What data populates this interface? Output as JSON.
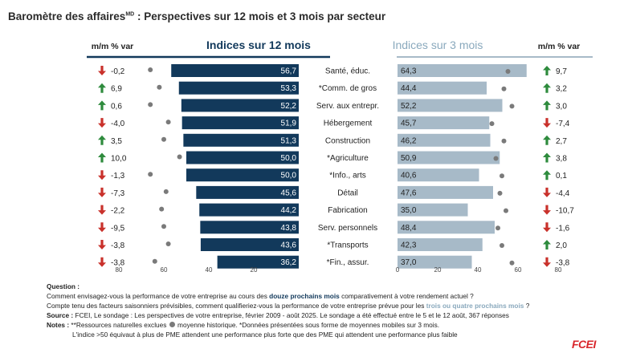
{
  "title": {
    "main": "Baromètre des affaires",
    "superscript": "MD",
    "rest": " : Perspectives sur 12 mois et 3 mois par secteur"
  },
  "headers": {
    "mm_left": "m/m % var",
    "indices_12": "Indices sur 12 mois",
    "indices_3": "Indices sur 3 mois",
    "mm_right": "m/m % var"
  },
  "colors": {
    "bar12": "#12395b",
    "bar3": "#a7bac8",
    "up": "#2e8b3d",
    "down": "#c9312b",
    "dot": "#7a7a7a",
    "header12": "#12395b",
    "header3": "#8aa9bd"
  },
  "chart_data": {
    "type": "bar",
    "title": "Baromètre des affaires : Perspectives sur 12 mois et 3 mois par secteur",
    "categories": [
      "Santé, éduc.",
      "*Comm. de gros",
      "Serv. aux entrepr.",
      "Hébergement",
      "Construction",
      "*Agriculture",
      "*Info., arts",
      "Détail",
      "Fabrication",
      "Serv. personnels",
      "*Transports",
      "*Fin., assur."
    ],
    "series": [
      {
        "name": "Indices sur 12 mois",
        "values": [
          56.7,
          53.3,
          52.2,
          51.9,
          51.3,
          50.0,
          50.0,
          45.6,
          44.2,
          43.8,
          43.6,
          36.2
        ],
        "labels": [
          "56,7",
          "53,3",
          "52,2",
          "51,9",
          "51,3",
          "50,0",
          "50,0",
          "45,6",
          "44,2",
          "43,8",
          "43,6",
          "36,2"
        ],
        "historical_average": [
          66,
          62,
          66,
          58,
          60,
          53,
          66,
          59,
          61,
          60,
          58,
          64
        ]
      },
      {
        "name": "Indices sur 3 mois",
        "values": [
          64.3,
          44.4,
          52.2,
          45.7,
          46.2,
          50.9,
          40.6,
          47.6,
          35.0,
          48.4,
          42.3,
          37.0
        ],
        "labels": [
          "64,3",
          "44,4",
          "52,2",
          "45,7",
          "46,2",
          "50,9",
          "40,6",
          "47,6",
          "35,0",
          "48,4",
          "42,3",
          "37,0"
        ],
        "historical_average": [
          55,
          53,
          57,
          47,
          53,
          49,
          52,
          51,
          54,
          50,
          52,
          57
        ]
      }
    ],
    "mm_var_12": {
      "values": [
        -0.2,
        6.9,
        0.6,
        -4.0,
        3.5,
        10.0,
        -1.3,
        -7.3,
        -2.2,
        -9.5,
        -3.8,
        -3.8
      ],
      "labels": [
        "-0,2",
        "6,9",
        "0,6",
        "-4,0",
        "3,5",
        "10,0",
        "-1,3",
        "-7,3",
        "-2,2",
        "-9,5",
        "-3,8",
        "-3,8"
      ]
    },
    "mm_var_3": {
      "values": [
        9.7,
        3.2,
        3.0,
        -7.4,
        2.7,
        3.8,
        0.1,
        -4.4,
        -10.7,
        -1.6,
        2.0,
        -3.8
      ],
      "labels": [
        "9,7",
        "3,2",
        "3,0",
        "-7,4",
        "2,7",
        "3,8",
        "0,1",
        "-4,4",
        "-10,7",
        "-1,6",
        "2,0",
        "-3,8"
      ]
    },
    "axis_12": {
      "ticks": [
        80,
        60,
        40,
        20
      ],
      "labels": [
        "80",
        "60",
        "40",
        "20"
      ],
      "range": [
        0,
        80
      ],
      "direction": "reversed"
    },
    "axis_3": {
      "ticks": [
        0,
        20,
        40,
        60,
        80
      ],
      "labels": [
        "0",
        "20",
        "40",
        "60",
        "80"
      ],
      "range": [
        0,
        80
      ]
    },
    "grid": false,
    "legend": "bottom-left"
  },
  "notes": {
    "question_label": "Question :",
    "q1_pre": "Comment envisagez-vous la performance de votre entreprise au cours des ",
    "q1_hl": "douze prochains mois",
    "q1_post": " comparativement à votre rendement actuel ?",
    "q2_pre": "Compte tenu des facteurs saisonniers prévisibles, comment qualifieriez-vous la performance  de votre entreprise prévue pour les ",
    "q2_hl": "trois ou quatre prochains mois",
    "q2_post": " ?",
    "source_label": "Source :",
    "source_text": " FCEI, Le sondage : Les perspectives de votre entreprise, février 2009 - août 2025. Le sondage a été effectué entre le 5 et le 12 août, 367 réponses",
    "notes_label": "Notes :",
    "notes_text_a": " **Ressources naturelles exclues",
    "notes_text_b": " moyenne historique. *Données présentées sous forme de moyennes mobiles sur 3 mois.",
    "notes_text_c": "L'indice >50 équivaut à plus de PME attendent une performance plus forte que des PME qui attendent une performance plus faible"
  },
  "logo": "FCEI"
}
